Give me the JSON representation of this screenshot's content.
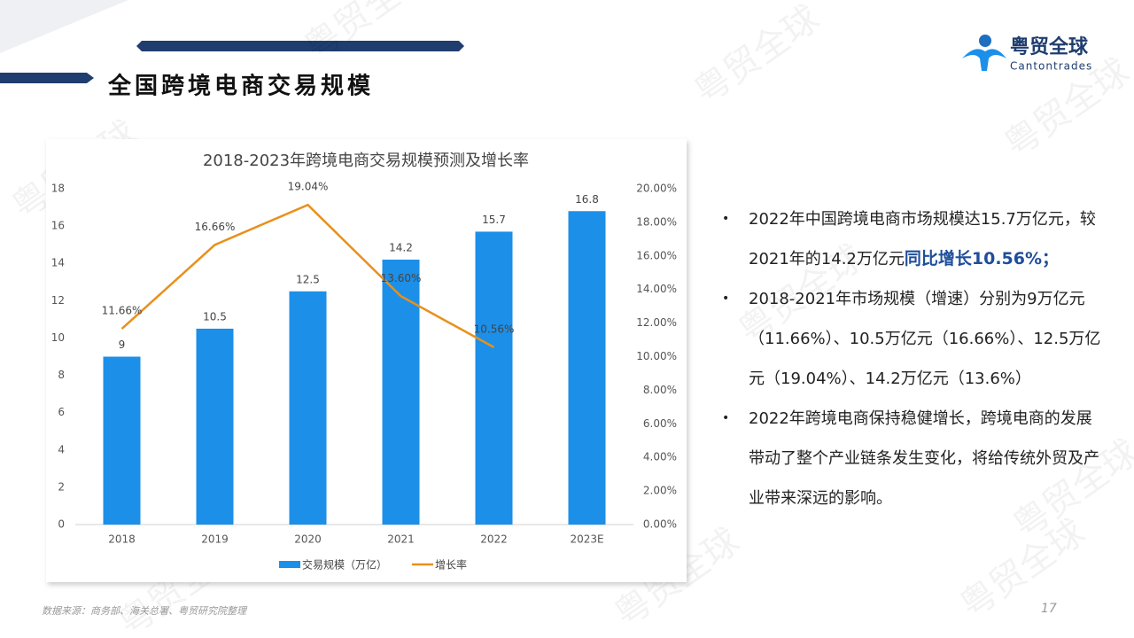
{
  "header": {
    "title": "全国跨境电商交易规模",
    "logo_cn": "粤贸全球",
    "logo_en": "Cantontrades"
  },
  "watermark": "粤贸全球",
  "chart_data": {
    "type": "bar_line",
    "title": "2018-2023年跨境电商交易规模预测及增长率",
    "categories": [
      "2018",
      "2019",
      "2020",
      "2021",
      "2022",
      "2023E"
    ],
    "series": [
      {
        "name": "交易规模（万亿）",
        "type": "bar",
        "color": "#1c8fe9",
        "values": [
          9,
          10.5,
          12.5,
          14.2,
          15.7,
          16.8
        ]
      },
      {
        "name": "增长率",
        "type": "line",
        "axis": "y2",
        "color": "#e8901c",
        "values": [
          11.66,
          16.66,
          19.04,
          13.6,
          10.56,
          null
        ],
        "value_labels": [
          "11.66%",
          "16.66%",
          "19.04%",
          "13.60%",
          "10.56%",
          null
        ]
      }
    ],
    "ylim": [
      0,
      18
    ],
    "yticks": [
      0,
      2,
      4,
      6,
      8,
      10,
      12,
      14,
      16,
      18
    ],
    "y2lim": [
      0,
      20
    ],
    "y2ticks": [
      {
        "value": 0,
        "label": "0.00%"
      },
      {
        "value": 2,
        "label": "2.00%"
      },
      {
        "value": 4,
        "label": "4.00%"
      },
      {
        "value": 6,
        "label": "6.00%"
      },
      {
        "value": 8,
        "label": "8.00%"
      },
      {
        "value": 10,
        "label": "10.00%"
      },
      {
        "value": 12,
        "label": "12.00%"
      },
      {
        "value": 14,
        "label": "14.00%"
      },
      {
        "value": 16,
        "label": "16.00%"
      },
      {
        "value": 18,
        "label": "18.00%"
      },
      {
        "value": 20,
        "label": "20.00%"
      }
    ],
    "legend": "bottom"
  },
  "bullets": [
    {
      "text": "2022年中国跨境电商市场规模达15.7万亿元，较2021年的14.2万亿元",
      "highlight": "同比增长10.56%；"
    },
    {
      "text": "2018-2021年市场规模（增速）分别为9万亿元（11.66%）、10.5万亿元（16.66%）、12.5万亿元（19.04%）、14.2万亿元（13.6%）"
    },
    {
      "text": "2022年跨境电商保持稳健增长，跨境电商的发展带动了整个产业链条发生变化，将给传统外贸及产业带来深远的影响。"
    }
  ],
  "source": "数据来源：商务部、海关总署、粤贸研究院整理",
  "page_number": "17"
}
